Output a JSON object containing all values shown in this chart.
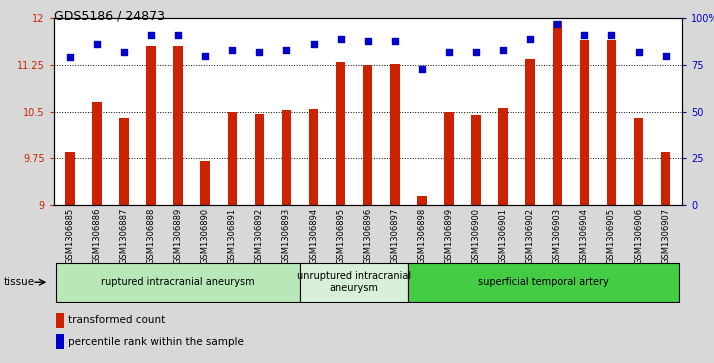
{
  "title": "GDS5186 / 24873",
  "categories": [
    "GSM1306885",
    "GSM1306886",
    "GSM1306887",
    "GSM1306888",
    "GSM1306889",
    "GSM1306890",
    "GSM1306891",
    "GSM1306892",
    "GSM1306893",
    "GSM1306894",
    "GSM1306895",
    "GSM1306896",
    "GSM1306897",
    "GSM1306898",
    "GSM1306899",
    "GSM1306900",
    "GSM1306901",
    "GSM1306902",
    "GSM1306903",
    "GSM1306904",
    "GSM1306905",
    "GSM1306906",
    "GSM1306907"
  ],
  "bar_values": [
    9.85,
    10.65,
    10.4,
    11.55,
    11.55,
    9.7,
    10.5,
    10.46,
    10.52,
    10.55,
    11.3,
    11.25,
    11.27,
    9.15,
    10.5,
    10.45,
    10.56,
    11.35,
    11.95,
    11.65,
    11.65,
    10.4,
    9.85
  ],
  "percentile_values": [
    79,
    86,
    82,
    91,
    91,
    80,
    83,
    82,
    83,
    86,
    89,
    88,
    88,
    73,
    82,
    82,
    83,
    89,
    97,
    91,
    91,
    82,
    80
  ],
  "bar_color": "#cc2200",
  "dot_color": "#0000cc",
  "ylim_left": [
    9,
    12
  ],
  "ylim_right": [
    0,
    100
  ],
  "yticks_left": [
    9,
    9.75,
    10.5,
    11.25,
    12
  ],
  "yticks_right": [
    0,
    25,
    50,
    75,
    100
  ],
  "ytick_labels_left": [
    "9",
    "9.75",
    "10.5",
    "11.25",
    "12"
  ],
  "ytick_labels_right": [
    "0",
    "25",
    "50",
    "75",
    "100%"
  ],
  "grid_lines": [
    9.75,
    10.5,
    11.25
  ],
  "tissue_groups": [
    {
      "label": "ruptured intracranial aneurysm",
      "start": 0,
      "end": 9,
      "color": "#b8e8b8"
    },
    {
      "label": "unruptured intracranial\naneurysm",
      "start": 9,
      "end": 13,
      "color": "#d8f0d8"
    },
    {
      "label": "superficial temporal artery",
      "start": 13,
      "end": 23,
      "color": "#44cc44"
    }
  ],
  "tissue_label": "tissue",
  "legend_items": [
    {
      "label": "transformed count",
      "color": "#cc2200"
    },
    {
      "label": "percentile rank within the sample",
      "color": "#0000cc"
    }
  ],
  "background_color": "#d8d8d8",
  "plot_bg_color": "#ffffff",
  "xtick_bg_color": "#d0d0d0"
}
